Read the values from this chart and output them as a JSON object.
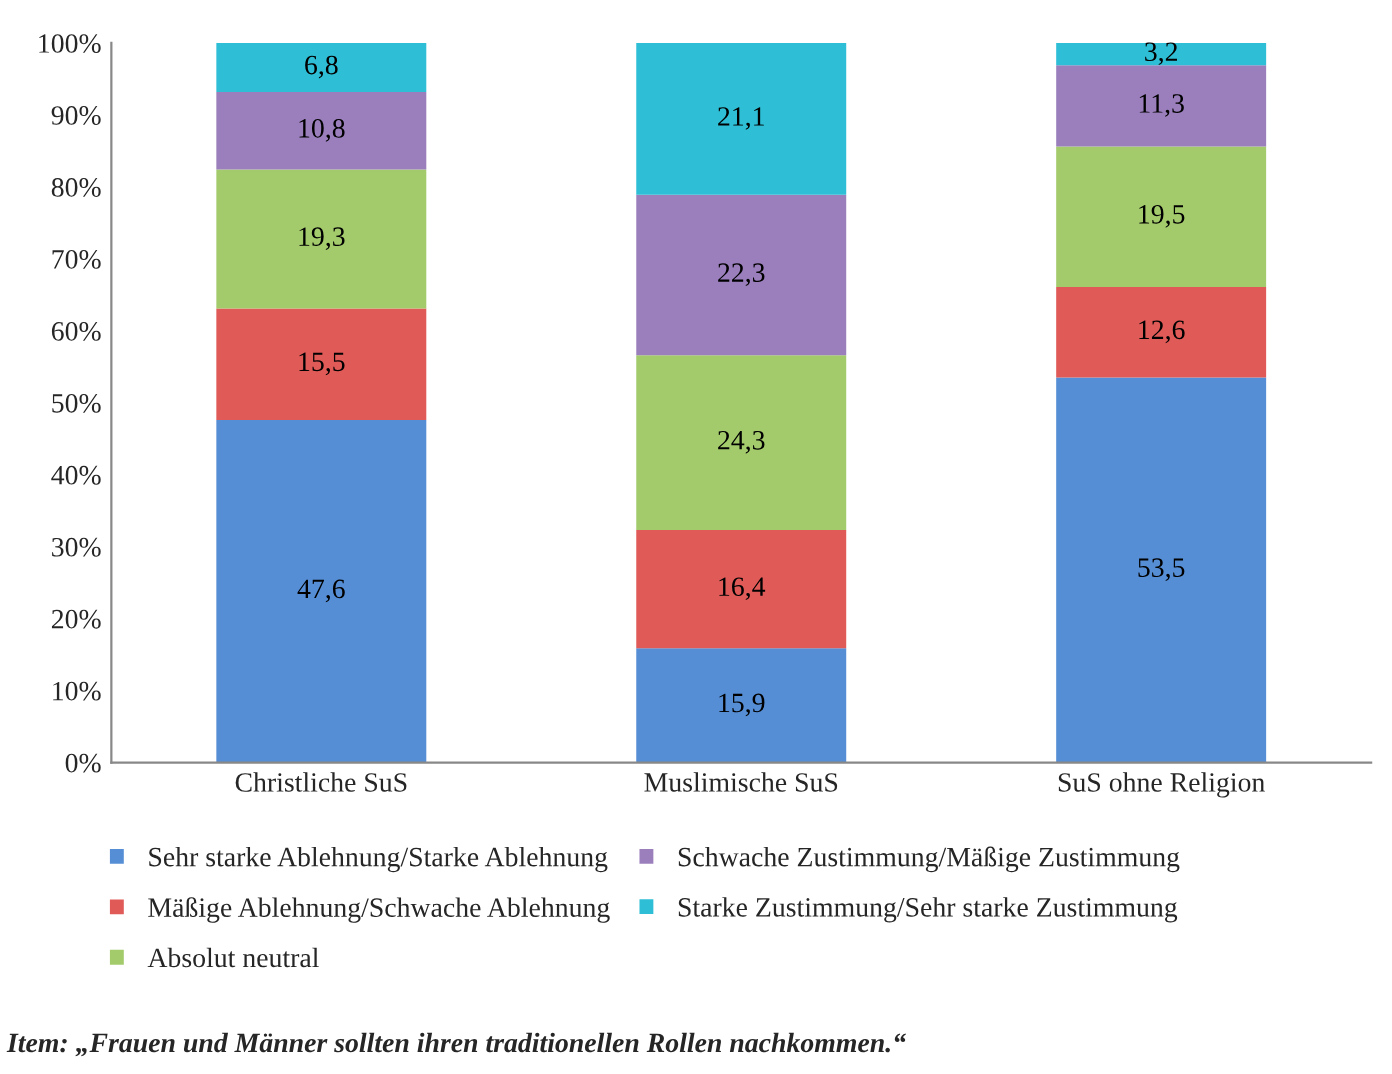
{
  "chart_data": {
    "type": "bar",
    "stacked": true,
    "categories": [
      "Christliche SuS",
      "Muslimische SuS",
      "SuS ohne Religion"
    ],
    "series": [
      {
        "name": "Sehr starke Ablehnung/Starke Ablehnung",
        "color": "#558ed5",
        "values": [
          47.6,
          15.9,
          53.5
        ],
        "value_labels": [
          "47,6",
          "15,9",
          "53,5"
        ]
      },
      {
        "name": "Mäßige Ablehnung/Schwache Ablehnung",
        "color": "#e05a57",
        "values": [
          15.5,
          16.4,
          12.6
        ],
        "value_labels": [
          "15,5",
          "16,4",
          "12,6"
        ]
      },
      {
        "name": "Absolut neutral",
        "color": "#a3cb6b",
        "values": [
          19.3,
          24.3,
          19.5
        ],
        "value_labels": [
          "19,3",
          "24,3",
          "19,5"
        ]
      },
      {
        "name": "Schwache Zustimmung/Mäßige Zustimmung",
        "color": "#9b7fbd",
        "values": [
          10.8,
          22.3,
          11.3
        ],
        "value_labels": [
          "10,8",
          "22,3",
          "11,3"
        ]
      },
      {
        "name": "Starke Zustimmung/Sehr starke Zustimmung",
        "color": "#2ebfd6",
        "values": [
          6.8,
          21.1,
          3.2
        ],
        "value_labels": [
          "6,8",
          "21,1",
          "3,2"
        ]
      }
    ],
    "ylim": [
      0,
      100
    ],
    "yticks": [
      {
        "value": 0,
        "label": "0%"
      },
      {
        "value": 10,
        "label": "10%"
      },
      {
        "value": 20,
        "label": "20%"
      },
      {
        "value": 30,
        "label": "30%"
      },
      {
        "value": 40,
        "label": "40%"
      },
      {
        "value": 50,
        "label": "50%"
      },
      {
        "value": 60,
        "label": "60%"
      },
      {
        "value": 70,
        "label": "70%"
      },
      {
        "value": 80,
        "label": "80%"
      },
      {
        "value": 90,
        "label": "90%"
      },
      {
        "value": 100,
        "label": "100%"
      }
    ],
    "grid": false,
    "legend": "bottom",
    "annotations": [
      "Item: „Frauen und Männer sollten ihren traditionellen Rollen nachkommen.“"
    ]
  }
}
